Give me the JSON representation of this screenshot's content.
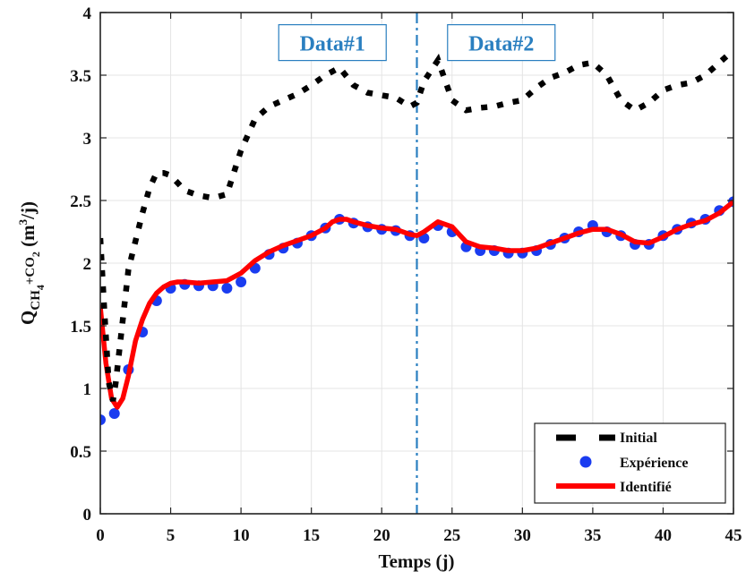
{
  "chart_data": {
    "type": "line",
    "xlabel": "Temps (j)",
    "ylabel": {
      "main": "Q",
      "sub1": "CH",
      "sub2": "4",
      "mid": "+CO",
      "sub3": "2",
      "unit_open": " (m",
      "unit_sup": "3",
      "unit_close": "/j)"
    },
    "xlim": [
      0,
      45
    ],
    "ylim": [
      0,
      4
    ],
    "xticks": [
      "0",
      "5",
      "10",
      "15",
      "20",
      "25",
      "30",
      "35",
      "40",
      "45"
    ],
    "yticks": [
      "0",
      "0.5",
      "1",
      "1.5",
      "2",
      "2.5",
      "3",
      "3.5",
      "4"
    ],
    "grid": true,
    "legend_position": "bottom-right",
    "divider": {
      "x": 22.5,
      "color": "#2a7fc0"
    },
    "annotations": [
      {
        "text": "Data#1",
        "x": 16.5,
        "y": 3.76
      },
      {
        "text": "Data#2",
        "x": 28.5,
        "y": 3.76
      }
    ],
    "series": [
      {
        "name": "Initial",
        "style": "dashed",
        "color": "#000000",
        "x": [
          0,
          0.3,
          0.6,
          0.9,
          1.1,
          1.4,
          2.0,
          3.0,
          3.5,
          4.0,
          4.5,
          5.0,
          6.0,
          7.0,
          8.0,
          9.0,
          10.0,
          11.0,
          12.0,
          13.0,
          14.0,
          15.0,
          16.0,
          17.0,
          18.0,
          19.0,
          20.0,
          21.0,
          22.0,
          22.5,
          23.0,
          24.0,
          25.0,
          26.0,
          27.0,
          28.0,
          29.0,
          30.0,
          31.0,
          32.0,
          33.0,
          34.0,
          35.0,
          36.0,
          37.0,
          38.0,
          39.0,
          40.0,
          41.0,
          42.0,
          43.0,
          44.0,
          45.0
        ],
        "values": [
          2.2,
          1.6,
          1.05,
          0.9,
          1.05,
          1.35,
          1.95,
          2.4,
          2.6,
          2.72,
          2.72,
          2.7,
          2.58,
          2.54,
          2.52,
          2.55,
          2.9,
          3.15,
          3.25,
          3.3,
          3.35,
          3.42,
          3.5,
          3.56,
          3.42,
          3.36,
          3.34,
          3.32,
          3.25,
          3.28,
          3.45,
          3.62,
          3.3,
          3.22,
          3.24,
          3.25,
          3.28,
          3.3,
          3.4,
          3.48,
          3.52,
          3.58,
          3.6,
          3.5,
          3.3,
          3.22,
          3.28,
          3.38,
          3.42,
          3.44,
          3.5,
          3.6,
          3.7
        ]
      },
      {
        "name": "Expérience",
        "style": "markers",
        "color": "#1a3cf0",
        "x": [
          0,
          1,
          2,
          3,
          4,
          5,
          6,
          7,
          8,
          9,
          10,
          11,
          12,
          13,
          14,
          15,
          16,
          17,
          18,
          19,
          20,
          21,
          22,
          23,
          24,
          25,
          26,
          27,
          28,
          29,
          30,
          31,
          32,
          33,
          34,
          35,
          36,
          37,
          38,
          39,
          40,
          41,
          42,
          43,
          44,
          45
        ],
        "values": [
          0.75,
          0.8,
          1.15,
          1.45,
          1.7,
          1.8,
          1.83,
          1.82,
          1.82,
          1.8,
          1.85,
          1.96,
          2.07,
          2.12,
          2.16,
          2.22,
          2.28,
          2.35,
          2.32,
          2.29,
          2.27,
          2.26,
          2.22,
          2.2,
          2.3,
          2.25,
          2.13,
          2.1,
          2.1,
          2.08,
          2.08,
          2.1,
          2.15,
          2.2,
          2.25,
          2.3,
          2.25,
          2.22,
          2.15,
          2.15,
          2.22,
          2.27,
          2.32,
          2.35,
          2.42,
          2.49
        ]
      },
      {
        "name": "Identifié",
        "style": "solid",
        "color": "#ff0000",
        "x": [
          0,
          0.4,
          0.8,
          1.2,
          1.6,
          2.0,
          2.5,
          3.0,
          3.5,
          4.0,
          4.5,
          5.0,
          5.5,
          6.0,
          7.0,
          8.0,
          9.0,
          10.0,
          11.0,
          12.0,
          13.0,
          14.0,
          15.0,
          16.0,
          16.5,
          17.0,
          17.5,
          18.0,
          19.0,
          20.0,
          21.0,
          22.0,
          22.5,
          23.0,
          24.0,
          25.0,
          26.0,
          27.0,
          28.0,
          29.0,
          30.0,
          31.0,
          32.0,
          33.0,
          34.0,
          35.0,
          36.0,
          37.0,
          38.0,
          39.0,
          40.0,
          41.0,
          42.0,
          43.0,
          44.0,
          45.0
        ],
        "values": [
          1.65,
          1.2,
          0.92,
          0.85,
          0.92,
          1.1,
          1.38,
          1.55,
          1.68,
          1.76,
          1.81,
          1.84,
          1.85,
          1.85,
          1.84,
          1.85,
          1.86,
          1.92,
          2.02,
          2.09,
          2.14,
          2.18,
          2.22,
          2.28,
          2.33,
          2.35,
          2.35,
          2.33,
          2.3,
          2.28,
          2.27,
          2.23,
          2.22,
          2.25,
          2.33,
          2.29,
          2.17,
          2.13,
          2.12,
          2.1,
          2.1,
          2.12,
          2.16,
          2.2,
          2.24,
          2.27,
          2.27,
          2.23,
          2.17,
          2.16,
          2.21,
          2.27,
          2.31,
          2.34,
          2.4,
          2.49
        ]
      }
    ]
  }
}
